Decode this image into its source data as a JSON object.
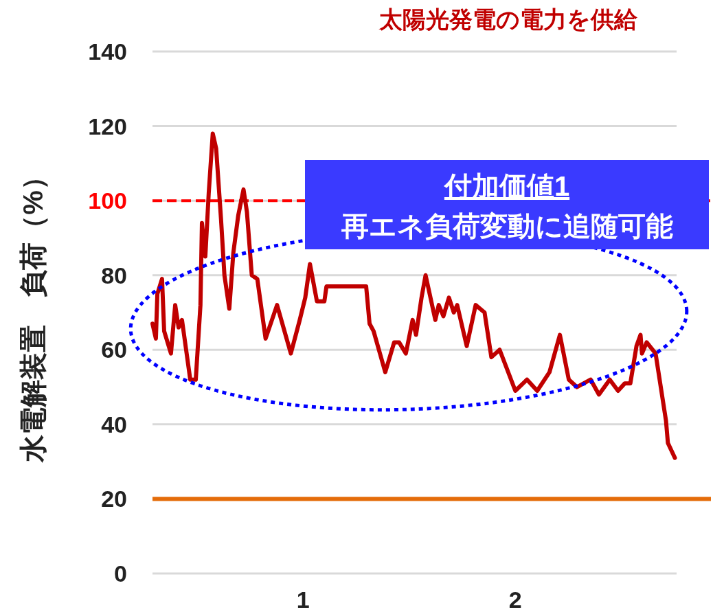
{
  "chart_data": {
    "type": "line",
    "title": "太陽光発電の電力を供給",
    "ylabel": "水電解装置　負荷（%）",
    "annotations": [
      "付加価値1",
      "再エネ負荷変動に追随可能"
    ],
    "xlim": [
      0.29,
      2.76
    ],
    "xticks": [
      1,
      2
    ],
    "ylim": [
      0,
      140
    ],
    "yticks": [
      0,
      20,
      40,
      60,
      80,
      100,
      120,
      140
    ],
    "grid": "y",
    "ref_lines": [
      {
        "axis": "y",
        "value": 100,
        "color": "#ff0000",
        "line_style": "dashed"
      },
      {
        "axis": "y",
        "value": 20,
        "color": "#e46c0a",
        "line_style": "solid"
      }
    ],
    "series": [
      {
        "color": "#c00000",
        "x": [
          0.29,
          0.306,
          0.313,
          0.335,
          0.345,
          0.377,
          0.397,
          0.413,
          0.429,
          0.468,
          0.494,
          0.516,
          0.523,
          0.539,
          0.555,
          0.574,
          0.59,
          0.613,
          0.629,
          0.652,
          0.671,
          0.694,
          0.719,
          0.735,
          0.758,
          0.784,
          0.823,
          0.877,
          0.942,
          0.984,
          1.01,
          1.032,
          1.065,
          1.1,
          1.11,
          1.297,
          1.313,
          1.332,
          1.387,
          1.429,
          1.452,
          1.484,
          1.516,
          1.532,
          1.558,
          1.577,
          1.623,
          1.639,
          1.661,
          1.687,
          1.71,
          1.726,
          1.771,
          1.813,
          1.855,
          1.887,
          1.926,
          2.0,
          2.055,
          2.103,
          2.161,
          2.21,
          2.252,
          2.29,
          2.355,
          2.394,
          2.445,
          2.484,
          2.516,
          2.542,
          2.571,
          2.59,
          2.597,
          2.619,
          2.661,
          2.71,
          2.719,
          2.752
        ],
        "values": [
          67,
          63,
          75,
          79,
          65,
          59,
          72,
          66,
          68,
          52,
          52,
          72,
          94,
          85,
          102,
          118,
          114,
          95,
          80,
          71,
          86,
          96,
          103,
          97,
          80,
          79,
          63,
          72,
          59,
          68,
          74,
          83,
          73,
          73,
          77,
          77,
          67,
          65,
          54,
          62,
          62,
          59,
          68,
          64,
          74,
          80,
          68,
          72,
          69,
          74,
          70,
          72,
          61,
          72,
          70,
          58,
          60,
          49,
          52,
          49,
          54,
          64,
          52,
          50,
          52,
          48,
          52,
          49,
          51,
          51,
          61,
          64,
          59,
          62,
          59,
          41,
          35,
          31
        ]
      }
    ]
  }
}
